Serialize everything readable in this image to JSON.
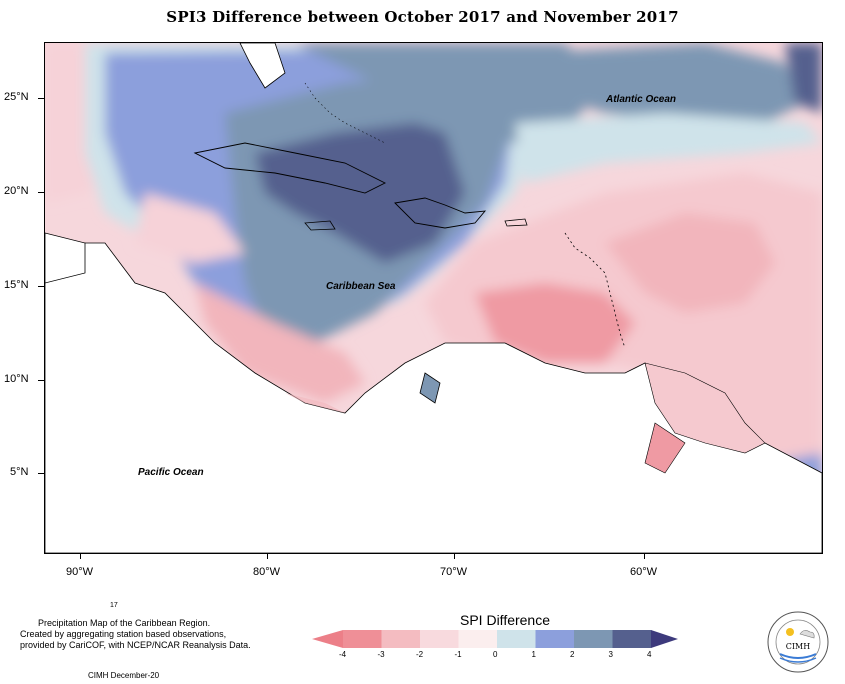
{
  "title": "SPI3 Difference between October 2017 and November 2017",
  "axes": {
    "lon_labels": [
      "90°W",
      "80°W",
      "70°W",
      "60°W"
    ],
    "lat_labels": [
      "25°N",
      "20°N",
      "15°N",
      "10°N",
      "5°N"
    ]
  },
  "places": {
    "atlantic": "Atlantic Ocean",
    "caribbean": "Caribbean Sea",
    "pacific": "Pacific Ocean"
  },
  "footer": {
    "small_number": "17",
    "line1": "Precipitation Map of the Caribbean Region.",
    "line2": "Created by aggregating station based observations,",
    "line3": "provided by CariCOF, with NCEP/NCAR Reanalysis Data.",
    "credit": "CIMH December-20"
  },
  "legend": {
    "title": "SPI Difference",
    "ticks": [
      "-4",
      "-3",
      "-2",
      "-1",
      "0",
      "1",
      "2",
      "3",
      "4"
    ],
    "colors": [
      "#ef8f97",
      "#f4bcc1",
      "#f8dade",
      "#fbeeee",
      "#cfe3ea",
      "#8c9fdc",
      "#7d97b3",
      "#55608e"
    ],
    "arrow_left_color": "#ec7f88",
    "arrow_right_color": "#3d3a7c"
  },
  "logo": {
    "text": "CIMH"
  }
}
